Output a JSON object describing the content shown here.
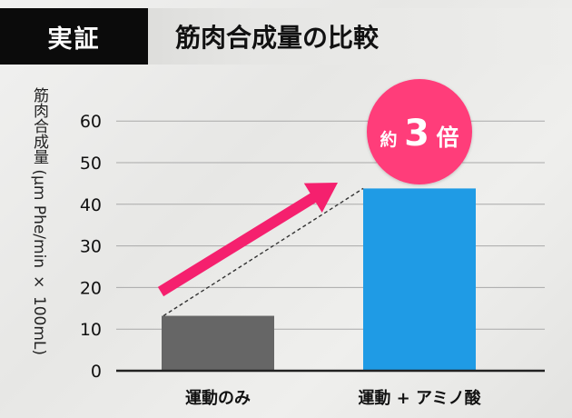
{
  "header": {
    "badge_label": "実証",
    "title": "筋肉合成量の比較"
  },
  "colors": {
    "badge_bg": "#0b0b0b",
    "bar_exercise": "#666666",
    "bar_exercise_amino": "#1f9be5",
    "accent_pink": "#f5206e",
    "callout_fill": "#ff3d7a"
  },
  "callout": {
    "prefix": "約",
    "number": "3",
    "suffix": "倍"
  },
  "chart_data": {
    "type": "bar",
    "title": "",
    "xlabel": "",
    "ylabel": "筋肉合成量 (μm Phe/min × 100mL)",
    "categories": [
      "運動のみ",
      "運動 + アミノ酸"
    ],
    "values": [
      13.2,
      43.8
    ],
    "ylim": [
      0,
      70
    ],
    "yticks": [
      0,
      10,
      20,
      30,
      40,
      50,
      60
    ],
    "grid": true,
    "legend": "none"
  }
}
